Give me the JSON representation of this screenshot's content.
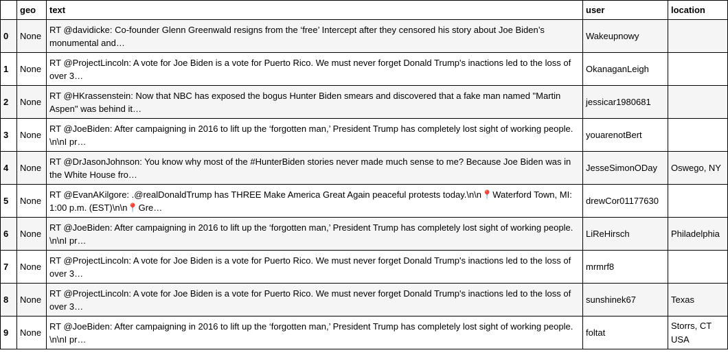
{
  "table": {
    "columns": {
      "index": "",
      "geo": "geo",
      "text": "text",
      "user": "user",
      "location": "location"
    },
    "rows": [
      {
        "index": "0",
        "geo": "None",
        "text": "RT @davidicke: Co-founder Glenn Greenwald resigns from the ‘free’ Intercept after they censored his story about Joe Biden’s monumental and…",
        "user": "Wakeupnowy",
        "location": ""
      },
      {
        "index": "1",
        "geo": "None",
        "text": "RT @ProjectLincoln: A vote for Joe Biden is a vote for Puerto Rico. We must never forget Donald Trump's inactions led to the loss of over 3…",
        "user": "OkanaganLeigh",
        "location": ""
      },
      {
        "index": "2",
        "geo": "None",
        "text": "RT @HKrassenstein: Now that NBC has exposed the bogus Hunter Biden smears and discovered that a fake man named \"Martin Aspen\" was behind it…",
        "user": "jessicar1980681",
        "location": ""
      },
      {
        "index": "3",
        "geo": "None",
        "text": "RT @JoeBiden: After campaigning in 2016 to lift up the ‘forgotten man,’ President Trump has completely lost sight of working people. \\n\\nI pr…",
        "user": "youarenotBert",
        "location": ""
      },
      {
        "index": "4",
        "geo": "None",
        "text": "RT @DrJasonJohnson: You know why most of the #HunterBiden stories never made much sense to me? Because Joe Biden was in the White House fro…",
        "user": "JesseSimonODay",
        "location": "Oswego, NY"
      },
      {
        "index": "5",
        "geo": "None",
        "text": "RT @EvanAKilgore: .@realDonaldTrump has THREE Make America Great Again peaceful protests today.\\n\\n📍Waterford Town, MI: 1:00 p.m. (EST)\\n\\n📍Gre…",
        "user": "drewCor01177630",
        "location": ""
      },
      {
        "index": "6",
        "geo": "None",
        "text": "RT @JoeBiden: After campaigning in 2016 to lift up the ‘forgotten man,’ President Trump has completely lost sight of working people. \\n\\nI pr…",
        "user": "LiReHirsch",
        "location": "Philadelphia"
      },
      {
        "index": "7",
        "geo": "None",
        "text": "RT @ProjectLincoln: A vote for Joe Biden is a vote for Puerto Rico. We must never forget Donald Trump's inactions led to the loss of over 3…",
        "user": "mrmrf8",
        "location": ""
      },
      {
        "index": "8",
        "geo": "None",
        "text": "RT @ProjectLincoln: A vote for Joe Biden is a vote for Puerto Rico. We must never forget Donald Trump's inactions led to the loss of over 3…",
        "user": "sunshinek67",
        "location": "Texas"
      },
      {
        "index": "9",
        "geo": "None",
        "text": "RT @JoeBiden: After campaigning in 2016 to lift up the ‘forgotten man,’ President Trump has completely lost sight of working people. \\n\\nI pr…",
        "user": "foltat",
        "location": "Storrs, CT USA"
      }
    ]
  }
}
